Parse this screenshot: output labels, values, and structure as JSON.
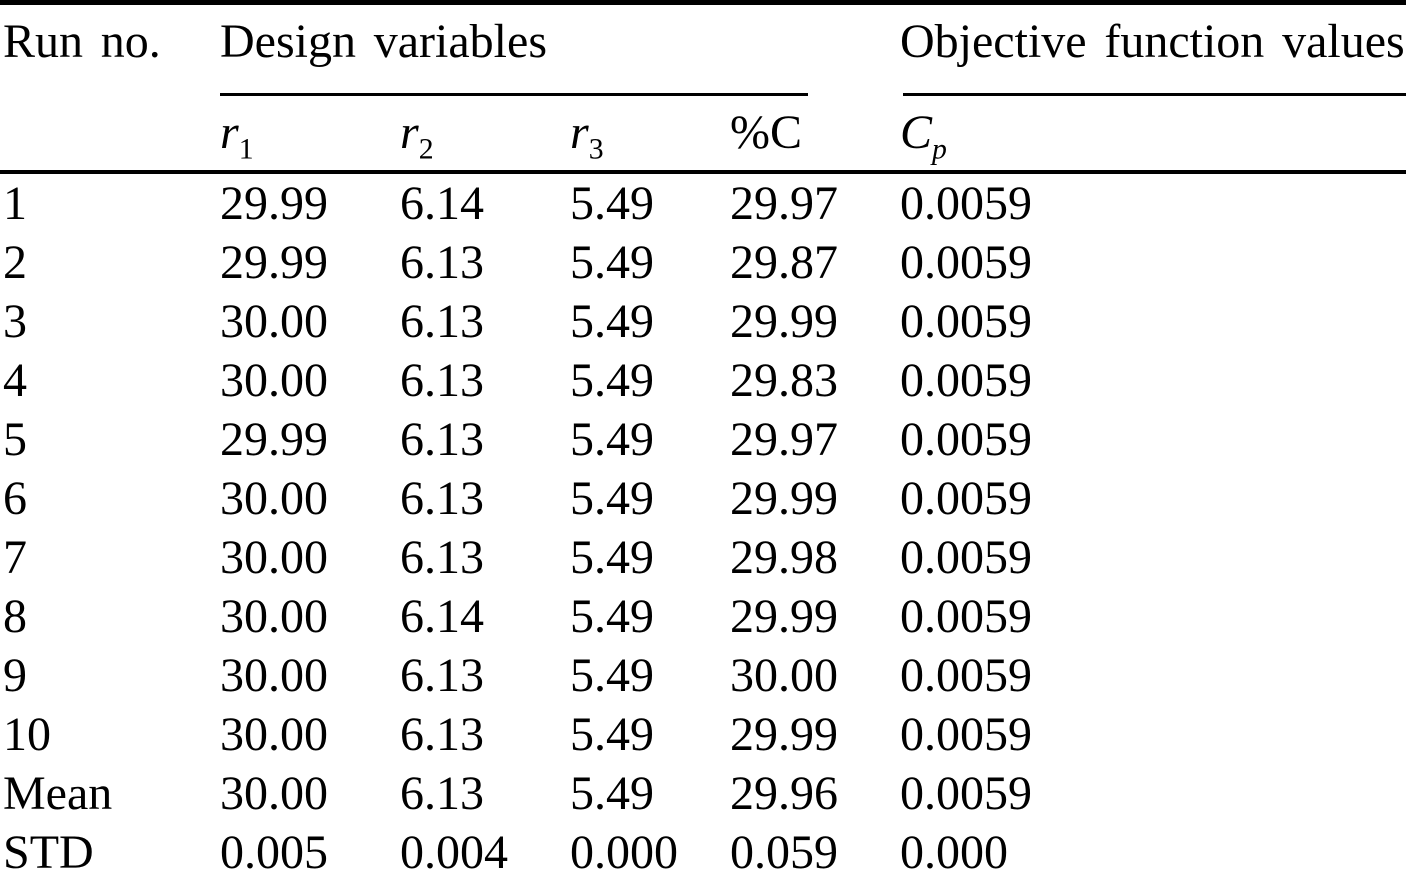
{
  "table": {
    "header": {
      "run_label": "Run no.",
      "design_label": "Design variables",
      "objective_label": "Objective function values"
    },
    "subheaders": {
      "r1": {
        "base": "r",
        "sub": "1"
      },
      "r2": {
        "base": "r",
        "sub": "2"
      },
      "r3": {
        "base": "r",
        "sub": "3"
      },
      "percent_c": "%C",
      "cp": {
        "base": "C",
        "sub": "p"
      }
    },
    "column_keys": [
      "run",
      "r1",
      "r2",
      "r3",
      "percent_c",
      "cp"
    ],
    "rows": [
      [
        "1",
        "29.99",
        "6.14",
        "5.49",
        "29.97",
        "0.0059"
      ],
      [
        "2",
        "29.99",
        "6.13",
        "5.49",
        "29.87",
        "0.0059"
      ],
      [
        "3",
        "30.00",
        "6.13",
        "5.49",
        "29.99",
        "0.0059"
      ],
      [
        "4",
        "30.00",
        "6.13",
        "5.49",
        "29.83",
        "0.0059"
      ],
      [
        "5",
        "29.99",
        "6.13",
        "5.49",
        "29.97",
        "0.0059"
      ],
      [
        "6",
        "30.00",
        "6.13",
        "5.49",
        "29.99",
        "0.0059"
      ],
      [
        "7",
        "30.00",
        "6.13",
        "5.49",
        "29.98",
        "0.0059"
      ],
      [
        "8",
        "30.00",
        "6.14",
        "5.49",
        "29.99",
        "0.0059"
      ],
      [
        "9",
        "30.00",
        "6.13",
        "5.49",
        "30.00",
        "0.0059"
      ],
      [
        "10",
        "30.00",
        "6.13",
        "5.49",
        "29.99",
        "0.0059"
      ],
      [
        "Mean",
        "30.00",
        "6.13",
        "5.49",
        "29.96",
        "0.0059"
      ],
      [
        "STD",
        "0.005",
        "0.004",
        "0.000",
        "0.059",
        "0.000"
      ]
    ]
  }
}
